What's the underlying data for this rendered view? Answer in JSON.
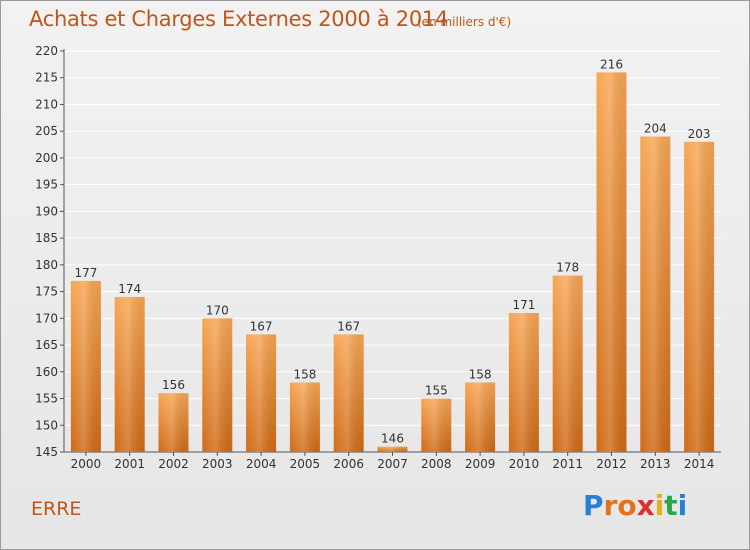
{
  "title": "Achats et Charges Externes 2000 à 2014",
  "subtitle": "(en milliers d'€)",
  "place_name": "ERRE",
  "logo": {
    "letters": [
      "P",
      "r",
      "o",
      "x",
      "i",
      "t",
      "i"
    ],
    "colors": [
      "#2a7fd4",
      "#e2731c",
      "#e2731c",
      "#d8332a",
      "#e2b21c",
      "#2aa84a",
      "#2a7fd4"
    ]
  },
  "colors": {
    "bar_light": "#f7a654",
    "bar_dark": "#cf6a16",
    "text_accent": "#c0561b",
    "axis_text": "#333333",
    "grid": "#ffffff"
  },
  "chart_data": {
    "type": "bar",
    "categories": [
      "2000",
      "2001",
      "2002",
      "2003",
      "2004",
      "2005",
      "2006",
      "2007",
      "2008",
      "2009",
      "2010",
      "2011",
      "2012",
      "2013",
      "2014"
    ],
    "values": [
      177,
      174,
      156,
      170,
      167,
      158,
      167,
      146,
      155,
      158,
      171,
      178,
      216,
      204,
      203
    ],
    "data_labels": [
      "177",
      "174",
      "156",
      "170",
      "167",
      "158",
      "167",
      "146",
      "155",
      "158",
      "171",
      "178",
      "216",
      "204",
      "203"
    ],
    "ylim": [
      145,
      220
    ],
    "yticks": [
      145,
      150,
      155,
      160,
      165,
      170,
      175,
      180,
      185,
      190,
      195,
      200,
      205,
      210,
      215,
      220
    ],
    "grid": true,
    "legend": "none",
    "xlabel": "",
    "ylabel": ""
  }
}
